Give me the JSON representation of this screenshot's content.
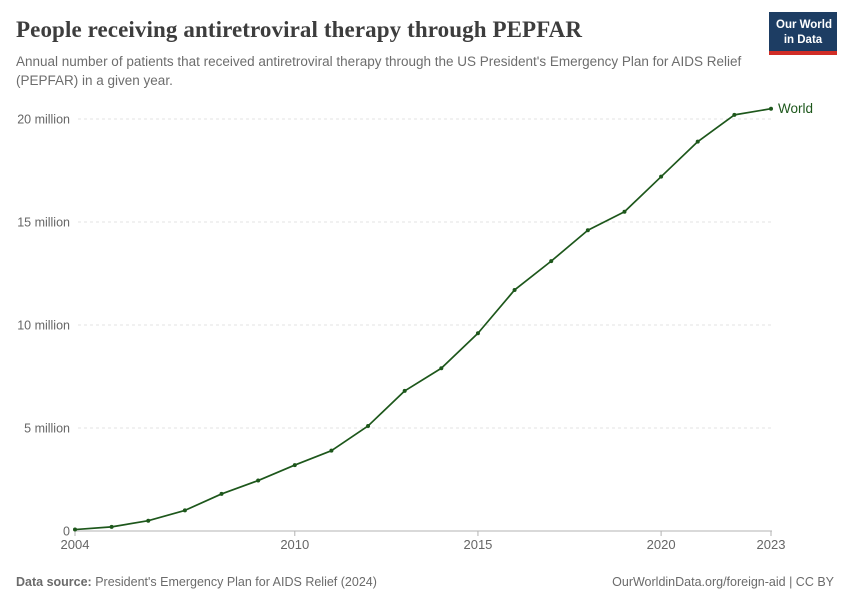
{
  "header": {
    "title": "People receiving antiretroviral therapy through PEPFAR",
    "subtitle": "Annual number of patients that received antiretroviral therapy through the US President's Emergency Plan for AIDS Relief (PEPFAR) in a given year.",
    "logo": {
      "line1": "Our World",
      "line2": "in Data"
    }
  },
  "chart_data": {
    "type": "line",
    "title": "People receiving antiretroviral therapy through PEPFAR",
    "unit": "people receiving antiretroviral therapy (millions)",
    "xlabel": "",
    "ylabel": "",
    "xlim": [
      2004,
      2023
    ],
    "ylim": [
      0,
      20.6
    ],
    "grid": "horizontal-dashed",
    "legend_position": "end-of-line-label",
    "line_color": "#1d571b",
    "x_axis": {
      "ticks": [
        2004,
        2010,
        2015,
        2020,
        2023
      ]
    },
    "y_axis": {
      "ticks": [
        {
          "value": 0,
          "label": "0"
        },
        {
          "value": 5,
          "label": "5 million"
        },
        {
          "value": 10,
          "label": "10 million"
        },
        {
          "value": 15,
          "label": "15 million"
        },
        {
          "value": 20,
          "label": "20 million"
        }
      ]
    },
    "series": [
      {
        "name": "World",
        "x": [
          2004,
          2005,
          2006,
          2007,
          2008,
          2009,
          2010,
          2011,
          2012,
          2013,
          2014,
          2015,
          2016,
          2017,
          2018,
          2019,
          2020,
          2021,
          2022,
          2023
        ],
        "values_millions": [
          0.07,
          0.2,
          0.5,
          1.0,
          1.8,
          2.45,
          3.2,
          3.9,
          5.1,
          6.8,
          7.9,
          9.6,
          11.7,
          13.1,
          14.6,
          15.5,
          17.2,
          18.9,
          20.2,
          20.5
        ]
      }
    ]
  },
  "footer": {
    "source_label": "Data source:",
    "source_text": " President's Emergency Plan for AIDS Relief (2024)",
    "credit": "OurWorldinData.org/foreign-aid | CC BY"
  },
  "colors": {
    "line": "#1d571b",
    "grid": "#e3e3e3",
    "axis": "#b3b3b3",
    "tick_label": "#666666",
    "title": "#3d3d3d",
    "subtitle": "#6d6d6d",
    "logo_bg": "#1d3d63",
    "logo_red": "#d12d26"
  }
}
